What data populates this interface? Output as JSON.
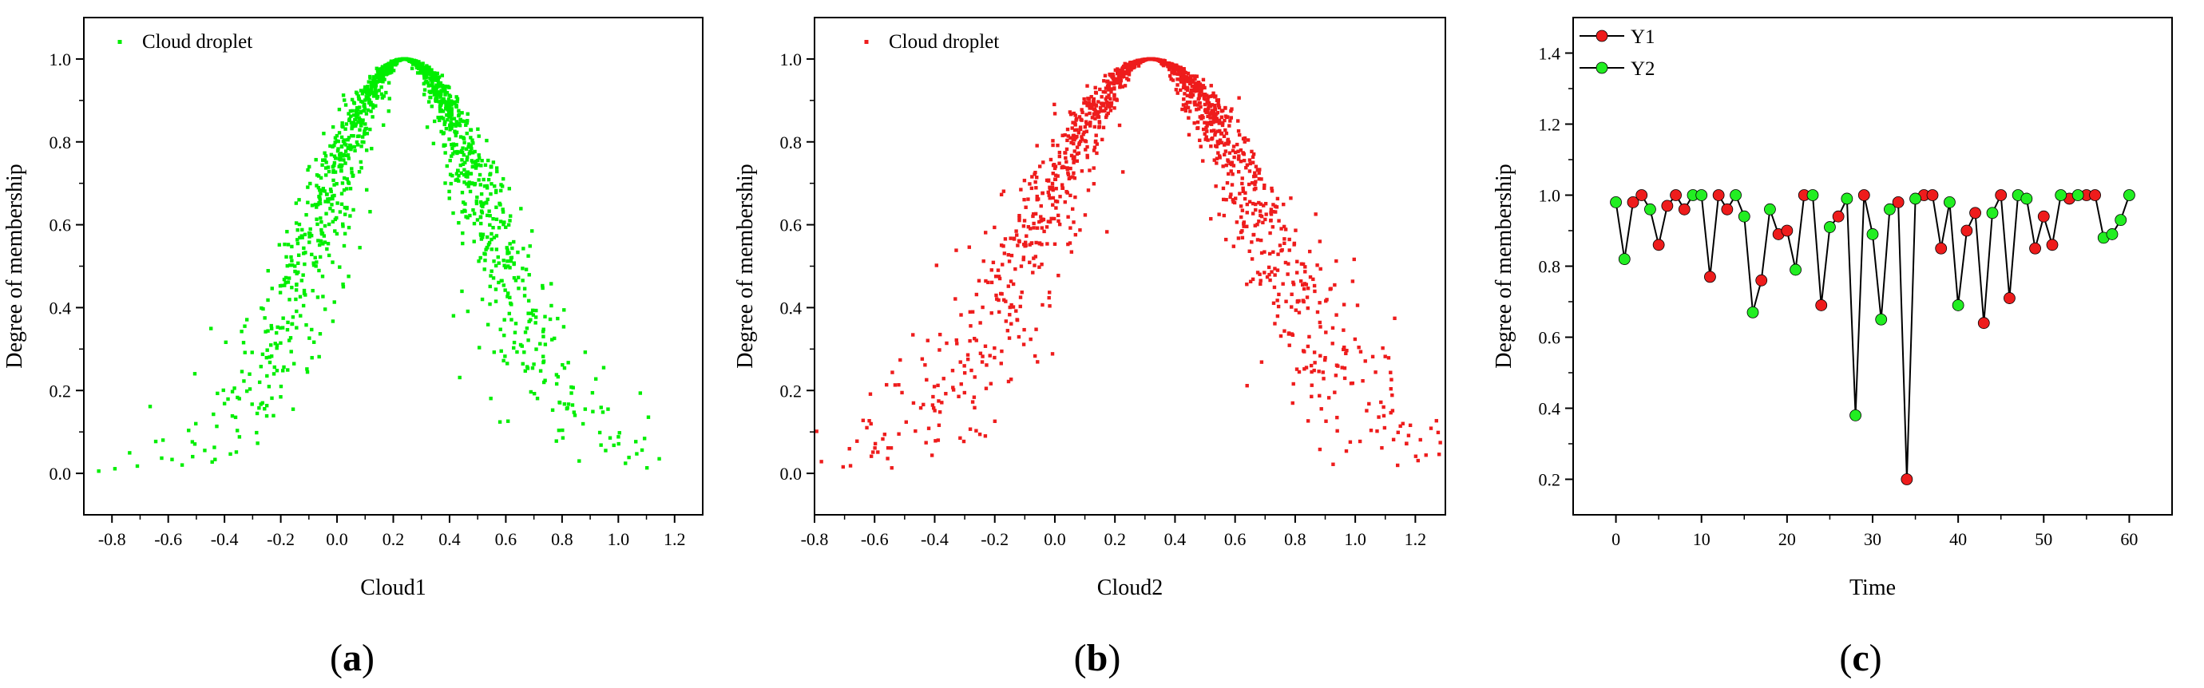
{
  "figure": {
    "panels": [
      {
        "label_prefix": "(",
        "label_letter": "a",
        "label_suffix": ")"
      },
      {
        "label_prefix": "(",
        "label_letter": "b",
        "label_suffix": ")"
      },
      {
        "label_prefix": "(",
        "label_letter": "c",
        "label_suffix": ")"
      }
    ]
  },
  "chart_data": [
    {
      "type": "scatter",
      "title": "",
      "xlabel": "Cloud1",
      "ylabel": "Degree of membership",
      "xlim": [
        -0.9,
        1.3
      ],
      "ylim": [
        -0.1,
        1.1
      ],
      "xticks": [
        -0.8,
        -0.6,
        -0.4,
        -0.2,
        0.0,
        0.2,
        0.4,
        0.6,
        0.8,
        1.0,
        1.2
      ],
      "yticks": [
        0.0,
        0.2,
        0.4,
        0.6,
        0.8,
        1.0
      ],
      "xtick_labels": [
        "-0.8",
        "-0.6",
        "-0.4",
        "-0.2",
        "0.0",
        "0.2",
        "0.4",
        "0.6",
        "0.8",
        "1.0",
        "1.2"
      ],
      "ytick_labels": [
        "0.0",
        "0.2",
        "0.4",
        "0.6",
        "0.8",
        "1.0"
      ],
      "legend": {
        "position": "top-left",
        "entries": [
          "Cloud droplet"
        ]
      },
      "color": "#00ee00",
      "distribution": {
        "kind": "normal-cloud",
        "Ex": 0.24,
        "En": 0.3,
        "He": 0.06,
        "n_points": 1500
      },
      "grid": false
    },
    {
      "type": "scatter",
      "title": "",
      "xlabel": "Cloud2",
      "ylabel": "Degree of membership",
      "xlim": [
        -0.8,
        1.3
      ],
      "ylim": [
        -0.1,
        1.1
      ],
      "xticks": [
        -0.8,
        -0.6,
        -0.4,
        -0.2,
        0.0,
        0.2,
        0.4,
        0.6,
        0.8,
        1.0,
        1.2
      ],
      "yticks": [
        0.0,
        0.2,
        0.4,
        0.6,
        0.8,
        1.0
      ],
      "xtick_labels": [
        "-0.8",
        "-0.6",
        "-0.4",
        "-0.2",
        "0.0",
        "0.2",
        "0.4",
        "0.6",
        "0.8",
        "1.0",
        "1.2"
      ],
      "ytick_labels": [
        "0.0",
        "0.2",
        "0.4",
        "0.6",
        "0.8",
        "1.0"
      ],
      "legend": {
        "position": "top-left",
        "entries": [
          "Cloud droplet"
        ]
      },
      "color": "#ee1c1c",
      "distribution": {
        "kind": "normal-cloud",
        "Ex": 0.32,
        "En": 0.38,
        "He": 0.07,
        "n_points": 1500
      },
      "grid": false
    },
    {
      "type": "line",
      "title": "",
      "xlabel": "Time",
      "ylabel": "Degree of membership",
      "xlim": [
        -5,
        65
      ],
      "ylim": [
        0.1,
        1.5
      ],
      "xticks": [
        0,
        10,
        20,
        30,
        40,
        50,
        60
      ],
      "yticks": [
        0.2,
        0.4,
        0.6,
        0.8,
        1.0,
        1.2,
        1.4
      ],
      "xtick_labels": [
        "0",
        "10",
        "20",
        "30",
        "40",
        "50",
        "60"
      ],
      "ytick_labels": [
        "0.2",
        "0.4",
        "0.6",
        "0.8",
        "1.0",
        "1.2",
        "1.4"
      ],
      "legend": {
        "position": "top-left",
        "entries": [
          "Y1",
          "Y2"
        ]
      },
      "series": [
        {
          "name": "Y1",
          "color": "#ee1c1c",
          "points": [
            [
              2,
              0.98
            ],
            [
              3,
              1.0
            ],
            [
              5,
              0.86
            ],
            [
              6,
              0.97
            ],
            [
              7,
              1.0
            ],
            [
              8,
              0.96
            ],
            [
              11,
              0.77
            ],
            [
              12,
              1.0
            ],
            [
              13,
              0.96
            ],
            [
              17,
              0.76
            ],
            [
              19,
              0.89
            ],
            [
              20,
              0.9
            ],
            [
              22,
              1.0
            ],
            [
              24,
              0.69
            ],
            [
              26,
              0.94
            ],
            [
              29,
              1.0
            ],
            [
              33,
              0.98
            ],
            [
              34,
              0.2
            ],
            [
              36,
              1.0
            ],
            [
              37,
              1.0
            ],
            [
              38,
              0.85
            ],
            [
              41,
              0.9
            ],
            [
              42,
              0.95
            ],
            [
              43,
              0.64
            ],
            [
              45,
              1.0
            ],
            [
              46,
              0.71
            ],
            [
              49,
              0.85
            ],
            [
              50,
              0.94
            ],
            [
              51,
              0.86
            ],
            [
              53,
              0.99
            ],
            [
              55,
              1.0
            ],
            [
              56,
              1.0
            ]
          ]
        },
        {
          "name": "Y2",
          "color": "#22ee22",
          "points": [
            [
              0,
              0.98
            ],
            [
              1,
              0.82
            ],
            [
              4,
              0.96
            ],
            [
              9,
              1.0
            ],
            [
              10,
              1.0
            ],
            [
              14,
              1.0
            ],
            [
              15,
              0.94
            ],
            [
              16,
              0.67
            ],
            [
              18,
              0.96
            ],
            [
              21,
              0.79
            ],
            [
              23,
              1.0
            ],
            [
              25,
              0.91
            ],
            [
              27,
              0.99
            ],
            [
              28,
              0.38
            ],
            [
              30,
              0.89
            ],
            [
              31,
              0.65
            ],
            [
              32,
              0.96
            ],
            [
              35,
              0.99
            ],
            [
              39,
              0.98
            ],
            [
              40,
              0.69
            ],
            [
              44,
              0.95
            ],
            [
              47,
              1.0
            ],
            [
              48,
              0.99
            ],
            [
              52,
              1.0
            ],
            [
              54,
              1.0
            ],
            [
              57,
              0.88
            ],
            [
              58,
              0.89
            ],
            [
              59,
              0.93
            ],
            [
              60,
              1.0
            ]
          ]
        }
      ],
      "grid": false
    }
  ]
}
